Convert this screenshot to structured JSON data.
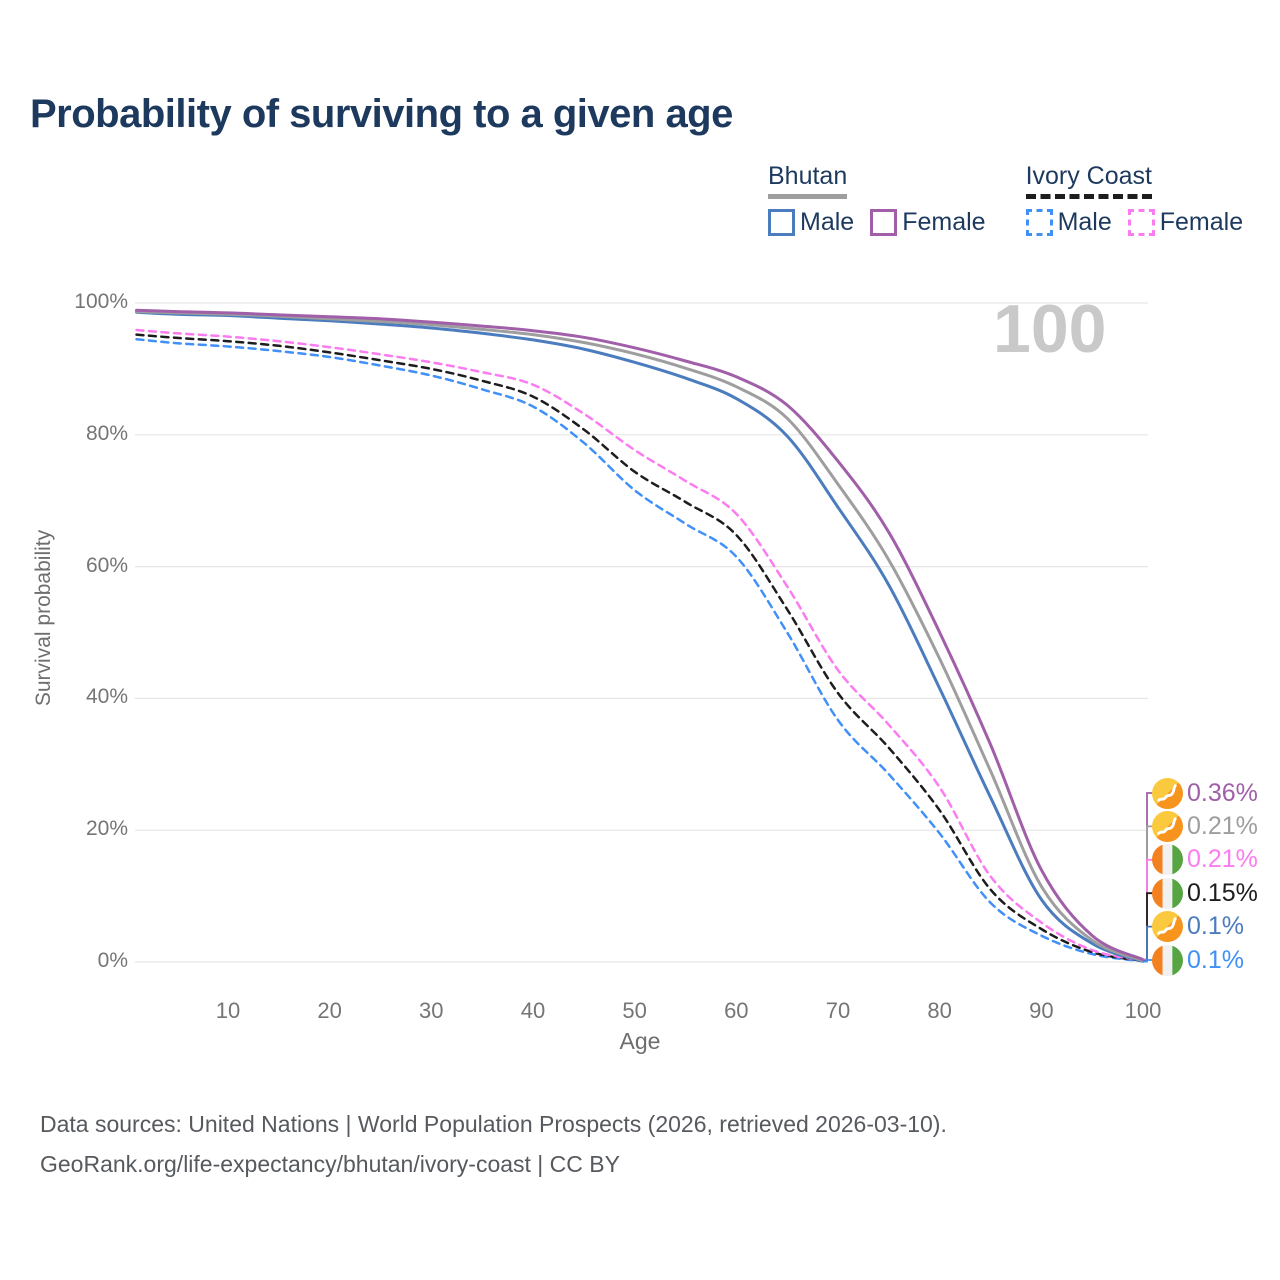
{
  "title": "Probability of surviving to a given age",
  "legend": {
    "groups": [
      {
        "title": "Bhutan",
        "underline": "solid",
        "underline_color": "#9e9e9e",
        "items": [
          {
            "label": "Male",
            "color": "#4b7cbe",
            "style": "solid"
          },
          {
            "label": "Female",
            "color": "#a05fa8",
            "style": "solid"
          }
        ]
      },
      {
        "title": "Ivory Coast",
        "underline": "dashed",
        "underline_color": "#1d1d1d",
        "items": [
          {
            "label": "Male",
            "color": "#4090f7",
            "style": "dashed"
          },
          {
            "label": "Female",
            "color": "#fb7cf0",
            "style": "dashed"
          }
        ]
      }
    ]
  },
  "chart_data": {
    "type": "line",
    "title": "Probability of surviving to a given age",
    "xlabel": "Age",
    "ylabel": "Survival probability",
    "xlim": [
      1,
      100
    ],
    "ylim": [
      0,
      100
    ],
    "x_ticks": [
      10,
      20,
      30,
      40,
      50,
      60,
      70,
      80,
      90,
      100
    ],
    "y_ticks": [
      0,
      20,
      40,
      60,
      80,
      100
    ],
    "y_tick_suffix": "%",
    "grid": true,
    "legend_position": "top-right",
    "watermark": "100",
    "ages": [
      1,
      5,
      10,
      15,
      20,
      25,
      30,
      35,
      40,
      45,
      50,
      55,
      60,
      65,
      70,
      75,
      80,
      85,
      90,
      95,
      100
    ],
    "series": [
      {
        "name": "Bhutan Female",
        "color": "#a05fa8",
        "style": "solid",
        "flag": "bhutan",
        "end_label": "0.36%",
        "end_row": 0,
        "values": [
          98.9,
          98.7,
          98.5,
          98.2,
          97.9,
          97.6,
          97.1,
          96.5,
          95.8,
          94.8,
          93.2,
          91.2,
          88.8,
          84.5,
          76.0,
          65.2,
          50.0,
          33.0,
          14.0,
          4.0,
          0.36
        ]
      },
      {
        "name": "Bhutan",
        "color": "#9e9e9e",
        "style": "solid",
        "flag": "bhutan",
        "end_label": "0.21%",
        "end_row": 1,
        "values": [
          98.7,
          98.5,
          98.3,
          98.0,
          97.6,
          97.2,
          96.7,
          96.0,
          95.2,
          94.0,
          92.3,
          90.1,
          87.3,
          82.5,
          72.5,
          61.0,
          46.0,
          29.0,
          11.5,
          3.3,
          0.21
        ]
      },
      {
        "name": "Ivory Coast Female",
        "color": "#fb7cf0",
        "style": "dashed",
        "flag": "ivory-coast",
        "end_label": "0.21%",
        "end_row": 2,
        "values": [
          95.9,
          95.4,
          94.9,
          94.2,
          93.3,
          92.2,
          91.0,
          89.5,
          87.6,
          83.2,
          77.7,
          73.0,
          68.0,
          57.0,
          44.3,
          36.0,
          26.5,
          13.0,
          6.0,
          1.8,
          0.21
        ]
      },
      {
        "name": "Ivory Coast",
        "color": "#1d1d1d",
        "style": "dashed",
        "flag": "ivory-coast",
        "end_label": "0.15%",
        "end_row": 3,
        "values": [
          95.2,
          94.7,
          94.2,
          93.5,
          92.5,
          91.3,
          90.0,
          88.2,
          85.8,
          80.8,
          74.4,
          69.8,
          64.8,
          53.5,
          40.8,
          32.5,
          23.0,
          11.0,
          5.0,
          1.5,
          0.15
        ]
      },
      {
        "name": "Bhutan Male",
        "color": "#4b7cbe",
        "style": "solid",
        "flag": "bhutan",
        "end_label": "0.1%",
        "end_row": 4,
        "values": [
          98.6,
          98.3,
          98.1,
          97.7,
          97.3,
          96.8,
          96.2,
          95.4,
          94.4,
          93.0,
          91.0,
          88.6,
          85.5,
          79.8,
          69.0,
          57.2,
          41.5,
          25.0,
          9.5,
          2.8,
          0.1
        ]
      },
      {
        "name": "Ivory Coast Male",
        "color": "#4090f7",
        "style": "dashed",
        "flag": "ivory-coast",
        "end_label": "0.1%",
        "end_row": 5,
        "values": [
          94.5,
          93.9,
          93.4,
          92.7,
          91.8,
          90.5,
          89.0,
          86.9,
          84.3,
          78.8,
          71.6,
          66.5,
          61.5,
          50.0,
          36.7,
          28.5,
          19.5,
          9.0,
          4.0,
          1.2,
          0.1
        ]
      }
    ]
  },
  "footer": {
    "line1": "Data sources: United Nations | World Population Prospects (2026, retrieved 2026-03-10).",
    "line2": "GeoRank.org/life-expectancy/bhutan/ivory-coast | CC BY"
  }
}
